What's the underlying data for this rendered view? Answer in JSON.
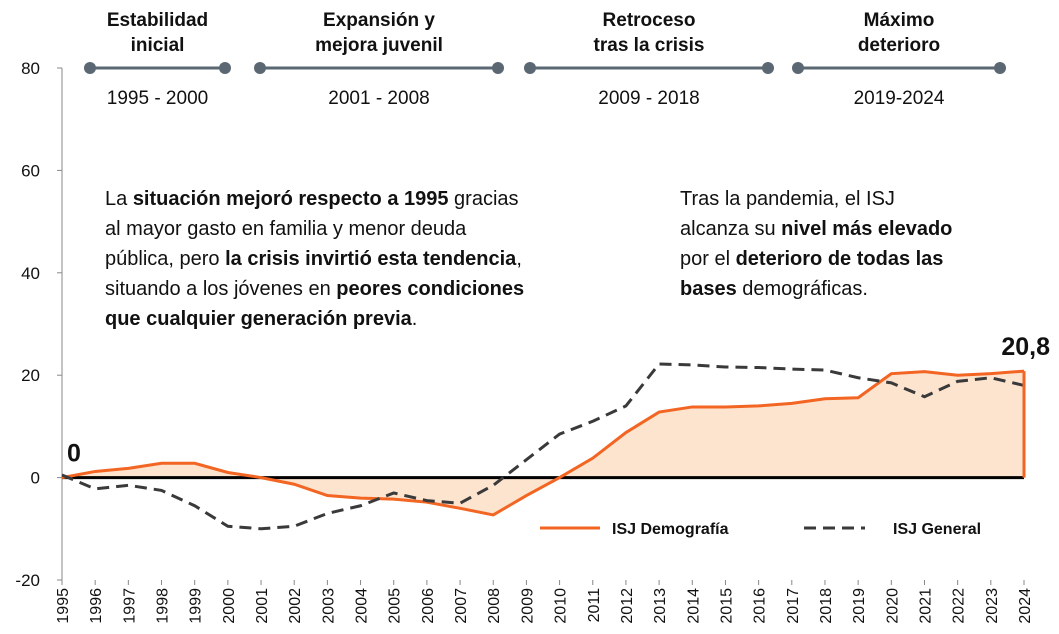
{
  "chart_data": {
    "type": "line",
    "categories": [
      "1995",
      "1996",
      "1997",
      "1998",
      "1999",
      "2000",
      "2001",
      "2002",
      "2003",
      "2004",
      "2005",
      "2006",
      "2007",
      "2008",
      "2009",
      "2010",
      "2011",
      "2012",
      "2013",
      "2014",
      "2015",
      "2016",
      "2017",
      "2018",
      "2019",
      "2020",
      "2021",
      "2022",
      "2023",
      "2024"
    ],
    "series": [
      {
        "name": "ISJ Demografía",
        "color": "#f26522",
        "area_color": "#fde4cf",
        "dashed": false,
        "values": [
          0,
          1.2,
          1.8,
          2.8,
          2.8,
          1.0,
          0,
          -1.3,
          -3.5,
          -4.0,
          -4.2,
          -4.8,
          -6.0,
          -7.3,
          -3.5,
          0,
          3.8,
          8.8,
          12.8,
          13.8,
          13.8,
          14.0,
          14.5,
          15.4,
          15.6,
          20.3,
          20.7,
          20.0,
          20.3,
          20.8
        ],
        "value_labels": [
          "0",
          null,
          null,
          null,
          null,
          null,
          null,
          null,
          null,
          null,
          null,
          null,
          null,
          null,
          null,
          null,
          null,
          null,
          null,
          null,
          null,
          null,
          null,
          null,
          null,
          null,
          null,
          null,
          null,
          "20,8"
        ]
      },
      {
        "name": "ISJ General",
        "color": "#3a3a3a",
        "dashed": true,
        "values": [
          0.5,
          -2.2,
          -1.5,
          -2.5,
          -5.5,
          -9.5,
          -10,
          -9.5,
          -7,
          -5.5,
          -3.0,
          -4.5,
          -5.0,
          -1.5,
          3.5,
          8.5,
          11,
          14,
          22.2,
          22,
          21.6,
          21.5,
          21.2,
          21.0,
          19.5,
          18.5,
          15.8,
          18.8,
          19.5,
          18.0
        ]
      }
    ],
    "ylim": [
      -20,
      80
    ],
    "yticks": [
      -20,
      0,
      20,
      40,
      60,
      80
    ],
    "legend": "bottom-right",
    "phases": [
      {
        "title": [
          "Estabilidad",
          "inicial"
        ],
        "years": "1995 - 2000"
      },
      {
        "title": [
          "Expansión y",
          "mejora juvenil"
        ],
        "years": "2001 - 2008"
      },
      {
        "title": [
          "Retroceso",
          "tras la crisis"
        ],
        "years": "2009 - 2018"
      },
      {
        "title": [
          "Máximo",
          "deterioro"
        ],
        "years": "2019-2024"
      }
    ],
    "notes": [
      {
        "lines": [
          [
            {
              "text": "La ",
              "bold": false
            },
            {
              "text": "situación mejoró respecto a 1995",
              "bold": true
            },
            {
              "text": " gracias",
              "bold": false
            }
          ],
          [
            {
              "text": "al mayor gasto en familia y menor deuda",
              "bold": false
            }
          ],
          [
            {
              "text": "pública, pero ",
              "bold": false
            },
            {
              "text": "la crisis invirtió esta tendencia",
              "bold": true
            },
            {
              "text": ",",
              "bold": false
            }
          ],
          [
            {
              "text": "situando a los jóvenes en ",
              "bold": false
            },
            {
              "text": "peores condiciones",
              "bold": true
            }
          ],
          [
            {
              "text": "que cualquier generación previa",
              "bold": true
            },
            {
              "text": ".",
              "bold": false
            }
          ]
        ]
      },
      {
        "lines": [
          [
            {
              "text": "Tras la pandemia, el ISJ",
              "bold": false
            }
          ],
          [
            {
              "text": "alcanza su ",
              "bold": false
            },
            {
              "text": "nivel más elevado",
              "bold": true
            }
          ],
          [
            {
              "text": "por el ",
              "bold": false
            },
            {
              "text": "deterioro de todas las",
              "bold": true
            }
          ],
          [
            {
              "text": "bases",
              "bold": true
            },
            {
              "text": " demográficas.",
              "bold": false
            }
          ]
        ]
      }
    ]
  }
}
